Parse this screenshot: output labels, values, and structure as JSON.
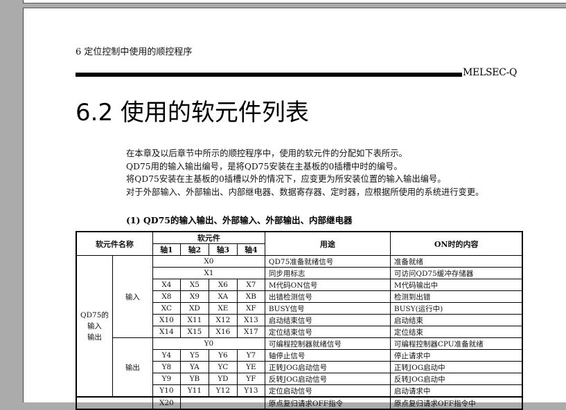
{
  "header": {
    "running_head": "6 定位控制中使用的顺控程序",
    "brand": "MELSEC-Q"
  },
  "section_title": "6.2 使用的软元件列表",
  "paragraphs": [
    "在本章及以后章节中所示的顺控程序中，使用的软元件的分配如下表所示。",
    "QD75用的输入输出编号，是将QD75安装在主基板的0插槽中时的编号。",
    "将QD75安装在主基板的0插槽以外的情况下，应变更为所安装位置的输入输出编号。",
    "对于外部输入、外部输出、内部继电器、数据寄存器、定时器，应根据所使用的系统进行变更。"
  ],
  "subheading": "(1) QD75的输入输出、外部输入、外部输出、内部继电器",
  "table": {
    "headers": {
      "name": "软元件名称",
      "device": "软元件",
      "axes": [
        "轴1",
        "轴2",
        "轴3",
        "轴4"
      ],
      "usage": "用途",
      "on": "ON时的内容"
    },
    "group": "QD75的\n输入\n输出",
    "group_lines": [
      "QD75的",
      "输入",
      "输出"
    ],
    "input_label": "输入",
    "output_label": "输出",
    "rows": [
      {
        "devices": [
          "X0"
        ],
        "usage": "QD75准备就绪信号",
        "on": "准备就绪"
      },
      {
        "devices": [
          "X1"
        ],
        "usage": "同步用标志",
        "on": "可访问QD75缓冲存储器"
      },
      {
        "devices": [
          "X4",
          "X5",
          "X6",
          "X7"
        ],
        "usage": "M代码ON信号",
        "on": "M代码输出中"
      },
      {
        "devices": [
          "X8",
          "X9",
          "XA",
          "XB"
        ],
        "usage": "出错检测信号",
        "on": "检测到出错"
      },
      {
        "devices": [
          "XC",
          "XD",
          "XE",
          "XF"
        ],
        "usage": "BUSY信号",
        "on": "BUSY(运行中)"
      },
      {
        "devices": [
          "X10",
          "X11",
          "X12",
          "X13"
        ],
        "usage": "启动结束信号",
        "on": "启动结束"
      },
      {
        "devices": [
          "X14",
          "X15",
          "X16",
          "X17"
        ],
        "usage": "定位结束信号",
        "on": "定位结束"
      },
      {
        "devices": [
          "Y0"
        ],
        "usage": "可编程控制器就绪信号",
        "on": "可编程控制器CPU准备就绪"
      },
      {
        "devices": [
          "Y4",
          "Y5",
          "Y6",
          "Y7"
        ],
        "usage": "轴停止信号",
        "on": "停止请求中"
      },
      {
        "devices": [
          "Y8",
          "YA",
          "YC",
          "YE"
        ],
        "usage": "正转JOG启动信号",
        "on": "正转JOG启动中"
      },
      {
        "devices": [
          "Y9",
          "YB",
          "YD",
          "YF"
        ],
        "usage": "反转JOG启动信号",
        "on": "反转JOG启动中"
      },
      {
        "devices": [
          "Y10",
          "Y11",
          "Y12",
          "Y13"
        ],
        "usage": "定位启动信号",
        "on": "启动请求中"
      },
      {
        "devices": [
          "X20"
        ],
        "usage": "原点复归请求OFF指令",
        "on": "原点复归请求OFF指令中"
      }
    ]
  }
}
